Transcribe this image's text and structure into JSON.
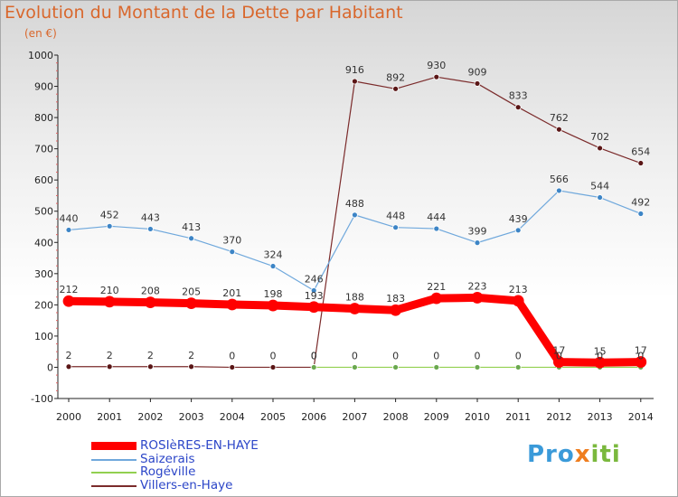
{
  "title": "Evolution du Montant de la Dette par Habitant",
  "subtitle": "(en €)",
  "logo": {
    "text_part1": "Pro",
    "text_x": "x",
    "text_part2": "iti"
  },
  "legend": [
    {
      "label": "ROSIèRES-EN-HAYE",
      "color": "#ff0000"
    },
    {
      "label": "Saizerais",
      "color": "#6fa8dc"
    },
    {
      "label": "Rogéville",
      "color": "#92d050"
    },
    {
      "label": "Villers-en-Haye",
      "color": "#7b2b2b"
    }
  ],
  "chart_data": {
    "type": "line",
    "title": "Evolution du Montant de la Dette par Habitant",
    "subtitle": "(en €)",
    "categories": [
      "2000",
      "2001",
      "2002",
      "2003",
      "2004",
      "2005",
      "2006",
      "2007",
      "2008",
      "2009",
      "2010",
      "2011",
      "2012",
      "2013",
      "2014"
    ],
    "ylim": [
      -100,
      1000
    ],
    "yticks": [
      -100,
      0,
      100,
      200,
      300,
      400,
      500,
      600,
      700,
      800,
      900,
      1000
    ],
    "grid": false,
    "legend_position": "bottom-left",
    "series": [
      {
        "name": "Villers-en-Haye",
        "color": "#7b2b2b",
        "line_width": 1.2,
        "marker_color": "#5a1616",
        "values": [
          2,
          2,
          2,
          2,
          0,
          0,
          0,
          916,
          892,
          930,
          909,
          833,
          762,
          702,
          654
        ],
        "labels": [
          "2",
          "2",
          "2",
          "2",
          "0",
          "0",
          "0",
          "916",
          "892",
          "930",
          "909",
          "833",
          "762",
          "702",
          "654"
        ]
      },
      {
        "name": "Saizerais",
        "color": "#6fa8dc",
        "line_width": 1.2,
        "marker_color": "#3d85c6",
        "values": [
          440,
          452,
          443,
          413,
          370,
          324,
          246,
          488,
          448,
          444,
          399,
          439,
          566,
          544,
          492
        ],
        "labels": [
          "440",
          "452",
          "443",
          "413",
          "370",
          "324",
          "246",
          "488",
          "448",
          "444",
          "399",
          "439",
          "566",
          "544",
          "492"
        ]
      },
      {
        "name": "Rogéville",
        "color": "#92d050",
        "line_width": 1.2,
        "marker_color": "#6aa84f",
        "values": [
          null,
          null,
          null,
          null,
          null,
          null,
          0,
          0,
          0,
          0,
          0,
          0,
          0,
          0,
          0
        ],
        "labels": [
          "",
          "",
          "",
          "",
          "",
          "",
          "0",
          "0",
          "0",
          "0",
          "0",
          "0",
          "0",
          "0",
          "0"
        ]
      },
      {
        "name": "ROSIèRES-EN-HAYE",
        "color": "#ff0000",
        "line_width": 9,
        "marker_color": "#ff0000",
        "values": [
          212,
          210,
          208,
          205,
          201,
          198,
          193,
          188,
          183,
          221,
          223,
          213,
          17,
          15,
          17
        ],
        "labels": [
          "212",
          "210",
          "208",
          "205",
          "201",
          "198",
          "193",
          "188",
          "183",
          "221",
          "223",
          "213",
          "17",
          "15",
          "17"
        ]
      }
    ]
  }
}
